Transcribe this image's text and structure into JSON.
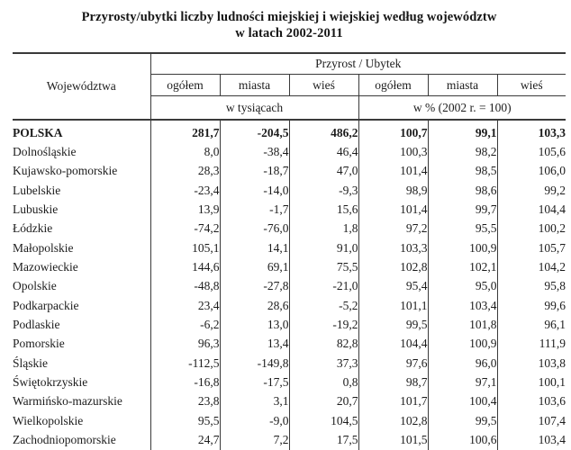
{
  "title": {
    "line1": "Przyrosty/ubytki liczby ludności miejskiej i wiejskiej według województw",
    "line2": "w latach 2002-2011"
  },
  "table": {
    "row_header": "Województwa",
    "group_header": "Przyrost / Ubytek",
    "sub_headers": [
      "ogółem",
      "miasta",
      "wieś",
      "ogółem",
      "miasta",
      "wieś"
    ],
    "unit_headers": {
      "thousands": "w tysiącach",
      "percent": "w % (2002 r. = 100)"
    },
    "rows": [
      {
        "name": "POLSKA",
        "bold": true,
        "values": [
          "281,7",
          "-204,5",
          "486,2",
          "100,7",
          "99,1",
          "103,3"
        ]
      },
      {
        "name": "Dolnośląskie",
        "bold": false,
        "values": [
          "8,0",
          "-38,4",
          "46,4",
          "100,3",
          "98,2",
          "105,6"
        ]
      },
      {
        "name": "Kujawsko-pomorskie",
        "bold": false,
        "values": [
          "28,3",
          "-18,7",
          "47,0",
          "101,4",
          "98,5",
          "106,0"
        ]
      },
      {
        "name": "Lubelskie",
        "bold": false,
        "values": [
          "-23,4",
          "-14,0",
          "-9,3",
          "98,9",
          "98,6",
          "99,2"
        ]
      },
      {
        "name": "Lubuskie",
        "bold": false,
        "values": [
          "13,9",
          "-1,7",
          "15,6",
          "101,4",
          "99,7",
          "104,4"
        ]
      },
      {
        "name": "Łódzkie",
        "bold": false,
        "values": [
          "-74,2",
          "-76,0",
          "1,8",
          "97,2",
          "95,5",
          "100,2"
        ]
      },
      {
        "name": "Małopolskie",
        "bold": false,
        "values": [
          "105,1",
          "14,1",
          "91,0",
          "103,3",
          "100,9",
          "105,7"
        ]
      },
      {
        "name": "Mazowieckie",
        "bold": false,
        "values": [
          "144,6",
          "69,1",
          "75,5",
          "102,8",
          "102,1",
          "104,2"
        ]
      },
      {
        "name": "Opolskie",
        "bold": false,
        "values": [
          "-48,8",
          "-27,8",
          "-21,0",
          "95,4",
          "95,0",
          "95,8"
        ]
      },
      {
        "name": "Podkarpackie",
        "bold": false,
        "values": [
          "23,4",
          "28,6",
          "-5,2",
          "101,1",
          "103,4",
          "99,6"
        ]
      },
      {
        "name": "Podlaskie",
        "bold": false,
        "values": [
          "-6,2",
          "13,0",
          "-19,2",
          "99,5",
          "101,8",
          "96,1"
        ]
      },
      {
        "name": "Pomorskie",
        "bold": false,
        "values": [
          "96,3",
          "13,4",
          "82,8",
          "104,4",
          "100,9",
          "111,9"
        ]
      },
      {
        "name": "Śląskie",
        "bold": false,
        "values": [
          "-112,5",
          "-149,8",
          "37,3",
          "97,6",
          "96,0",
          "103,8"
        ]
      },
      {
        "name": "Świętokrzyskie",
        "bold": false,
        "values": [
          "-16,8",
          "-17,5",
          "0,8",
          "98,7",
          "97,1",
          "100,1"
        ]
      },
      {
        "name": "Warmińsko-mazurskie",
        "bold": false,
        "values": [
          "23,8",
          "3,1",
          "20,7",
          "101,7",
          "100,4",
          "103,6"
        ]
      },
      {
        "name": "Wielkopolskie",
        "bold": false,
        "values": [
          "95,5",
          "-9,0",
          "104,5",
          "102,8",
          "99,5",
          "107,4"
        ]
      },
      {
        "name": "Zachodniopomorskie",
        "bold": false,
        "values": [
          "24,7",
          "7,2",
          "17,5",
          "101,5",
          "100,6",
          "103,4"
        ]
      }
    ]
  }
}
